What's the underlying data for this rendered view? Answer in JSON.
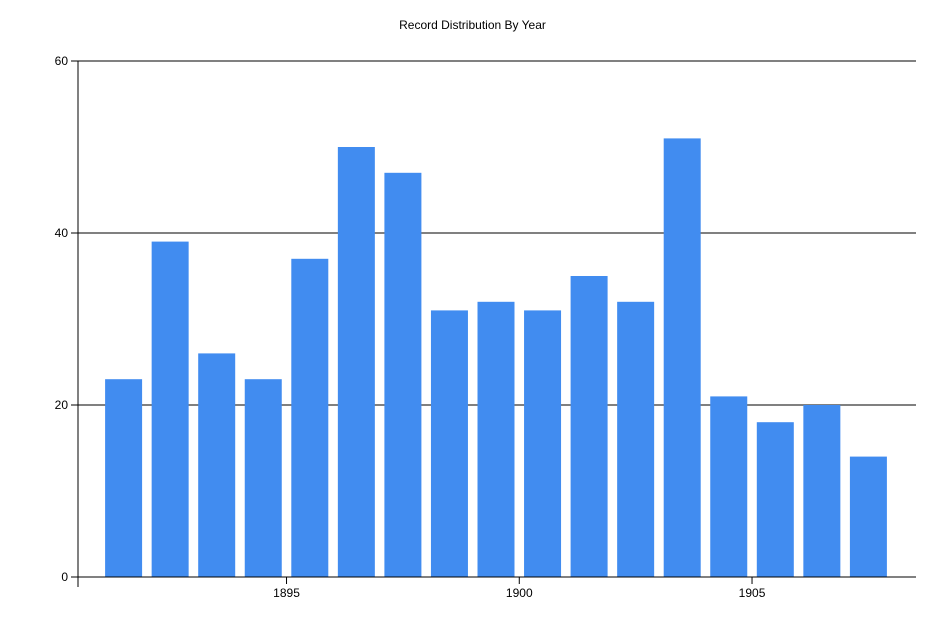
{
  "chart_data": {
    "type": "bar",
    "title": "Record Distribution By Year",
    "xlabel": "",
    "ylabel": "",
    "categories": [
      1891,
      1892,
      1893,
      1894,
      1895,
      1896,
      1897,
      1898,
      1899,
      1900,
      1901,
      1902,
      1903,
      1904,
      1905,
      1906,
      1907
    ],
    "values": [
      23,
      39,
      26,
      23,
      37,
      50,
      47,
      31,
      32,
      31,
      35,
      32,
      51,
      21,
      18,
      20,
      14
    ],
    "ylim": [
      0,
      60
    ],
    "yticks": [
      0,
      20,
      40,
      60
    ],
    "xticks": [
      1895,
      1900,
      1905
    ],
    "grid": "horizontal",
    "legend": "none",
    "bar_color": "#418CF0"
  }
}
